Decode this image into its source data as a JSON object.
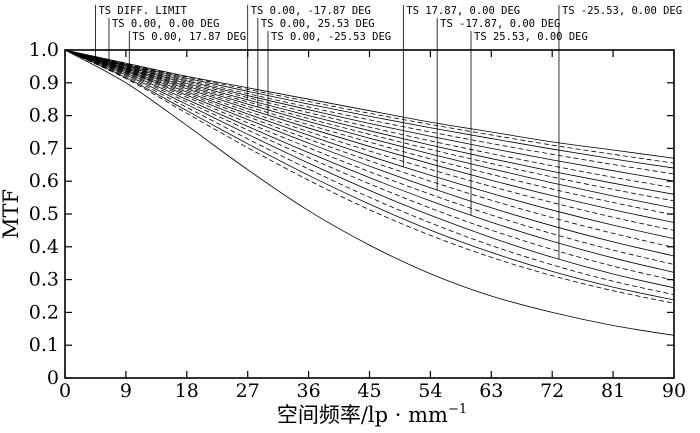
{
  "chart_data": {
    "type": "line",
    "title": "",
    "xlabel": "空间频率/lp · mm",
    "xlabel_sup": "−1",
    "ylabel": "MTF",
    "xlim": [
      0,
      90
    ],
    "ylim": [
      0,
      1
    ],
    "xticks": [
      0,
      9,
      18,
      27,
      36,
      45,
      54,
      63,
      72,
      81,
      90
    ],
    "yticks": [
      0,
      0.1,
      0.2,
      0.3,
      0.4,
      0.5,
      0.6,
      0.7,
      0.8,
      0.9,
      1.0
    ],
    "xtick_labels": [
      "0",
      "9",
      "18",
      "27",
      "36",
      "45",
      "54",
      "63",
      "72",
      "81",
      "90"
    ],
    "ytick_labels": [
      "0",
      "0.1",
      "0.2",
      "0.3",
      "0.4",
      "0.5",
      "0.6",
      "0.7",
      "0.8",
      "0.9",
      "1.0"
    ],
    "grid": false,
    "legend": [
      {
        "label": "TS DIFF. LIMIT",
        "x": 4.5
      },
      {
        "label": "TS 0.00, 0.00 DEG",
        "x": 6.5
      },
      {
        "label": "TS 0.00, 17.87 DEG",
        "x": 9.5
      },
      {
        "label": "TS 0.00, -17.87 DEG",
        "x": 27
      },
      {
        "label": "TS 0.00, 25.53 DEG",
        "x": 28.5
      },
      {
        "label": "TS 0.00, -25.53 DEG",
        "x": 30
      },
      {
        "label": "TS 17.87, 0.00 DEG",
        "x": 50
      },
      {
        "label": "TS -17.87, 0.00 DEG",
        "x": 55
      },
      {
        "label": "TS 25.53, 0.00 DEG",
        "x": 60
      },
      {
        "label": "TS -25.53, 0.00 DEG",
        "x": 73
      }
    ],
    "x": [
      0,
      9,
      18,
      27,
      36,
      45,
      54,
      63,
      72,
      81,
      90
    ],
    "series": [
      {
        "values": [
          1.0,
          0.96,
          0.92,
          0.885,
          0.85,
          0.815,
          0.78,
          0.75,
          0.72,
          0.695,
          0.67
        ]
      },
      {
        "values": [
          1.0,
          0.958,
          0.918,
          0.88,
          0.843,
          0.807,
          0.773,
          0.741,
          0.71,
          0.682,
          0.655
        ]
      },
      {
        "values": [
          1.0,
          0.956,
          0.914,
          0.874,
          0.835,
          0.798,
          0.763,
          0.73,
          0.698,
          0.668,
          0.64
        ]
      },
      {
        "values": [
          1.0,
          0.955,
          0.91,
          0.867,
          0.826,
          0.787,
          0.75,
          0.715,
          0.682,
          0.651,
          0.622
        ]
      },
      {
        "values": [
          1.0,
          0.953,
          0.906,
          0.861,
          0.818,
          0.776,
          0.737,
          0.7,
          0.665,
          0.632,
          0.6
        ]
      },
      {
        "values": [
          1.0,
          0.951,
          0.902,
          0.855,
          0.809,
          0.765,
          0.723,
          0.684,
          0.647,
          0.612,
          0.58
        ]
      },
      {
        "values": [
          1.0,
          0.95,
          0.898,
          0.848,
          0.8,
          0.754,
          0.71,
          0.669,
          0.63,
          0.594,
          0.56
        ]
      },
      {
        "values": [
          1.0,
          0.948,
          0.894,
          0.842,
          0.791,
          0.743,
          0.697,
          0.654,
          0.613,
          0.575,
          0.54
        ]
      },
      {
        "values": [
          1.0,
          0.946,
          0.89,
          0.835,
          0.782,
          0.731,
          0.683,
          0.638,
          0.595,
          0.555,
          0.518
        ]
      },
      {
        "values": [
          1.0,
          0.945,
          0.886,
          0.828,
          0.772,
          0.719,
          0.668,
          0.621,
          0.576,
          0.535,
          0.497
        ]
      },
      {
        "values": [
          1.0,
          0.943,
          0.882,
          0.821,
          0.762,
          0.706,
          0.653,
          0.603,
          0.556,
          0.513,
          0.474
        ]
      },
      {
        "values": [
          1.0,
          0.941,
          0.877,
          0.813,
          0.751,
          0.692,
          0.636,
          0.584,
          0.535,
          0.49,
          0.45
        ]
      },
      {
        "values": [
          1.0,
          0.939,
          0.872,
          0.805,
          0.74,
          0.677,
          0.618,
          0.563,
          0.512,
          0.466,
          0.425
        ]
      },
      {
        "values": [
          1.0,
          0.937,
          0.867,
          0.797,
          0.728,
          0.662,
          0.6,
          0.542,
          0.489,
          0.441,
          0.398
        ]
      },
      {
        "values": [
          1.0,
          0.935,
          0.862,
          0.788,
          0.716,
          0.646,
          0.58,
          0.519,
          0.464,
          0.415,
          0.372
        ]
      },
      {
        "values": [
          1.0,
          0.933,
          0.856,
          0.778,
          0.702,
          0.629,
          0.56,
          0.497,
          0.44,
          0.39,
          0.346
        ]
      },
      {
        "values": [
          1.0,
          0.93,
          0.849,
          0.767,
          0.687,
          0.611,
          0.54,
          0.475,
          0.417,
          0.366,
          0.322
        ]
      },
      {
        "values": [
          1.0,
          0.927,
          0.842,
          0.756,
          0.672,
          0.592,
          0.518,
          0.451,
          0.392,
          0.341,
          0.298
        ]
      },
      {
        "values": [
          1.0,
          0.924,
          0.834,
          0.743,
          0.655,
          0.572,
          0.496,
          0.428,
          0.368,
          0.317,
          0.275
        ]
      },
      {
        "values": [
          1.0,
          0.92,
          0.825,
          0.729,
          0.637,
          0.551,
          0.473,
          0.404,
          0.345,
          0.295,
          0.254
        ]
      },
      {
        "values": [
          1.0,
          0.916,
          0.815,
          0.714,
          0.618,
          0.53,
          0.451,
          0.383,
          0.325,
          0.277,
          0.238
        ]
      },
      {
        "values": [
          1.0,
          0.913,
          0.807,
          0.702,
          0.603,
          0.513,
          0.435,
          0.368,
          0.312,
          0.266,
          0.228
        ]
      },
      {
        "values": [
          1.0,
          0.9,
          0.77,
          0.635,
          0.51,
          0.405,
          0.318,
          0.25,
          0.2,
          0.16,
          0.13
        ]
      }
    ]
  }
}
